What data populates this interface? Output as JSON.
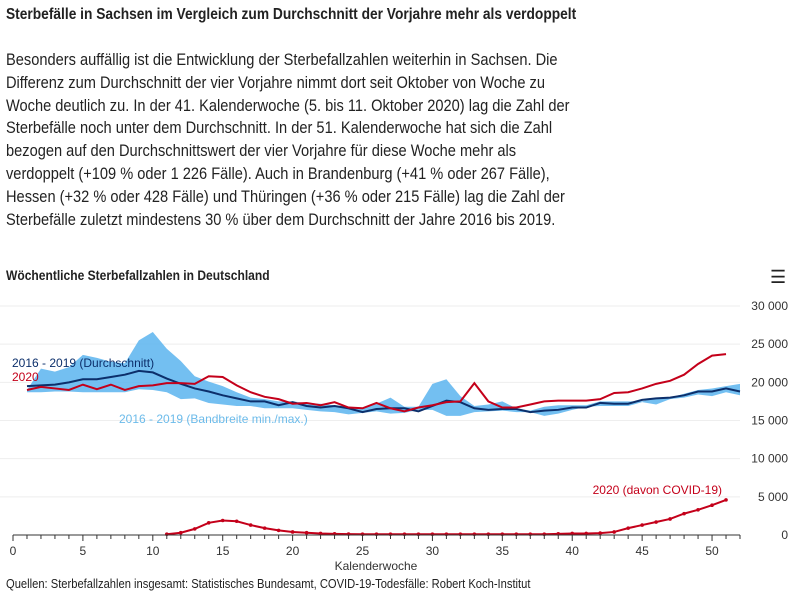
{
  "headline": "Sterbefälle in Sachsen im Vergleich zum Durchschnitt der Vorjahre mehr als verdoppelt",
  "paragraph_lines": [
    "Besonders auffällig ist die Entwicklung der Sterbefallzahlen weiterhin in Sachsen. Die",
    "Differenz zum Durchschnitt der vier Vorjahre nimmt dort seit Oktober von Woche zu",
    "Woche deutlich zu. In der 41. Kalenderwoche (5. bis 11. Oktober 2020) lag die Zahl der",
    "Sterbefälle noch unter dem Durchschnitt. In der 51. Kalenderwoche hat sich die Zahl",
    "bezogen auf den Durchschnittswert der vier Vorjahre für diese Woche mehr als",
    "verdoppelt (+109 % oder 1 226 Fälle). Auch in Brandenburg (+41 % oder 267 Fälle),",
    "Hessen (+32 % oder 428 Fälle) und Thüringen (+36 % oder 215 Fälle) lag die Zahl der",
    "Sterbefälle zuletzt mindestens 30 % über dem Durchschnitt der Jahre 2016 bis 2019."
  ],
  "menu_icon": "hamburger-menu-icon",
  "source": "Quellen: Sterbefallzahlen insgesamt: Statistisches Bundesamt, COVID-19-Todesfälle: Robert Koch-Institut",
  "colors": {
    "avg": "#0c2f6b",
    "y2020": "#c4001a",
    "band": "#5ab4ee",
    "bandLabel": "#6cbbea"
  },
  "chart_data": {
    "type": "line",
    "title": "Wöchentliche Sterbefallzahlen in Deutschland",
    "xlabel": "Kalenderwoche",
    "ylabel": "",
    "xlim": [
      0,
      52
    ],
    "ylim": [
      0,
      30000
    ],
    "xticks": [
      0,
      5,
      10,
      15,
      20,
      25,
      30,
      35,
      40,
      45,
      50
    ],
    "yticks": [
      0,
      5000,
      10000,
      15000,
      20000,
      25000,
      30000
    ],
    "ytick_labels": [
      "0",
      "5 000",
      "10 000",
      "15 000",
      "20 000",
      "25 000",
      "30 000"
    ],
    "grid": true,
    "series": [
      {
        "name": "2016 - 2019 (Bandbreite min./max.)",
        "type": "area",
        "x_start": 1,
        "max": [
          19000,
          21800,
          21400,
          22000,
          23600,
          23200,
          22700,
          22500,
          25500,
          26600,
          24400,
          22800,
          20800,
          20100,
          19500,
          18700,
          18000,
          17800,
          17500,
          17500,
          17300,
          17200,
          17000,
          16800,
          16700,
          17200,
          18000,
          16800,
          16800,
          19800,
          20400,
          18200,
          16900,
          17100,
          17500,
          16600,
          16300,
          16800,
          17000,
          17000,
          17000,
          17500,
          17500,
          17500,
          17500,
          18000,
          18000,
          18500,
          19000,
          19200,
          19500,
          19800
        ],
        "min": [
          18700,
          18700,
          18800,
          18800,
          18700,
          18700,
          18700,
          18700,
          19100,
          19000,
          18700,
          17800,
          17900,
          17300,
          17100,
          16900,
          16900,
          16600,
          16600,
          16600,
          16400,
          16200,
          16100,
          15800,
          16000,
          16200,
          15900,
          16000,
          16400,
          16400,
          15600,
          15600,
          16100,
          16200,
          16300,
          16100,
          16100,
          15600,
          15900,
          16400,
          16800,
          16900,
          16900,
          16900,
          17400,
          17100,
          17800,
          18000,
          18400,
          18200,
          18700,
          18300
        ]
      },
      {
        "name": "2016 - 2019 (Durchschnitt)",
        "x_start": 1,
        "values": [
          19500,
          19600,
          19700,
          20000,
          20400,
          20400,
          20700,
          21000,
          21500,
          21300,
          20500,
          19800,
          19200,
          18800,
          18300,
          17900,
          17500,
          17500,
          17000,
          17400,
          16900,
          16700,
          16900,
          16600,
          16100,
          16500,
          16600,
          16600,
          16200,
          16900,
          17600,
          17400,
          16600,
          16400,
          16500,
          16500,
          16100,
          16300,
          16400,
          16700,
          16700,
          17300,
          17200,
          17200,
          17700,
          17900,
          18000,
          18300,
          18800,
          18800,
          19200,
          18800
        ]
      },
      {
        "name": "2020",
        "x_start": 1,
        "values": [
          19000,
          19400,
          19200,
          19000,
          19700,
          19100,
          19700,
          19000,
          19500,
          19600,
          19900,
          19900,
          19800,
          20800,
          20700,
          19600,
          18700,
          18100,
          17800,
          17200,
          17300,
          17000,
          17400,
          16700,
          16600,
          17300,
          16600,
          16200,
          16700,
          17000,
          17400,
          17500,
          19900,
          17500,
          16700,
          16700,
          17100,
          17500,
          17600,
          17600,
          17600,
          17800,
          18600,
          18700,
          19200,
          19800,
          20200,
          21000,
          22400,
          23500,
          23700
        ]
      },
      {
        "name": "2020 (davon COVID-19)",
        "x_start": 11,
        "values": [
          100,
          300,
          800,
          1600,
          1900,
          1800,
          1300,
          900,
          600,
          400,
          300,
          200,
          150,
          120,
          100,
          100,
          100,
          100,
          100,
          100,
          100,
          100,
          100,
          100,
          100,
          100,
          100,
          100,
          150,
          200,
          200,
          250,
          400,
          900,
          1300,
          1700,
          2100,
          2800,
          3300,
          3900,
          4600
        ]
      }
    ]
  }
}
